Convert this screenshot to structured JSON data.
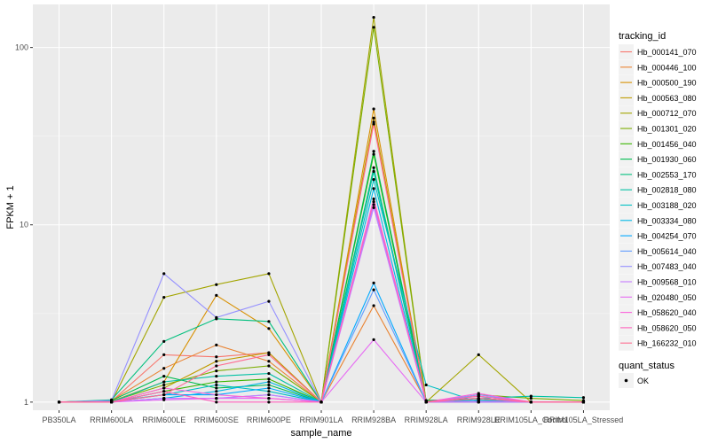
{
  "chart_data": {
    "type": "line",
    "xlabel": "sample_name",
    "ylabel": "FPKM + 1",
    "y_scale": "log10",
    "ylim": [
      0.9,
      175
    ],
    "y_ticks": [
      1,
      10,
      100
    ],
    "y_tick_labels": [
      "1",
      "10",
      "100"
    ],
    "grid": true,
    "legend_position": "right",
    "categories": [
      "PB350LA",
      "RRIM600LA",
      "RRIM600LE",
      "RRIM600SE",
      "RRIM600PE",
      "RRIM901LA",
      "RRIM928BA",
      "RRIM928LA",
      "RRIM928LE",
      "RRIM105LA_Control",
      "RRIM105LA_Stressed"
    ],
    "legend": {
      "title": "tracking_id",
      "quant_title": "quant_status",
      "quant_entries": [
        "OK"
      ]
    },
    "series": [
      {
        "name": "Hb_000141_070",
        "color": "#F8766D",
        "values": [
          1,
          1.01,
          1.85,
          1.8,
          1.9,
          1,
          38,
          1.02,
          1.05,
          1.0,
          1.0
        ]
      },
      {
        "name": "Hb_000446_100",
        "color": "#EA8331",
        "values": [
          1,
          1.02,
          1.55,
          2.1,
          1.7,
          1,
          3.5,
          1.01,
          1.08,
          1.0,
          1.0
        ]
      },
      {
        "name": "Hb_000500_190",
        "color": "#D89000",
        "values": [
          1,
          1.01,
          1.3,
          4.0,
          2.6,
          1,
          45,
          1.0,
          1.03,
          1.0,
          1.0
        ]
      },
      {
        "name": "Hb_000563_080",
        "color": "#C09B00",
        "values": [
          1,
          1.0,
          1.2,
          1.7,
          1.9,
          1,
          40,
          1.0,
          1.0,
          1.0,
          1.0
        ]
      },
      {
        "name": "Hb_000712_070",
        "color": "#A3A500",
        "values": [
          1,
          1.0,
          3.9,
          4.6,
          5.3,
          1,
          148,
          1.0,
          1.85,
          1.0,
          1.0
        ]
      },
      {
        "name": "Hb_001301_020",
        "color": "#7CAE00",
        "values": [
          1,
          1.01,
          1.25,
          1.5,
          1.6,
          1,
          130,
          1.0,
          1.1,
          1.05,
          1.02
        ]
      },
      {
        "name": "Hb_001456_040",
        "color": "#39B600",
        "values": [
          1,
          1.0,
          1.15,
          1.3,
          1.35,
          1,
          25,
          1.0,
          1.05,
          1.0,
          1.0
        ]
      },
      {
        "name": "Hb_001930_060",
        "color": "#00BB4E",
        "values": [
          1,
          1.02,
          1.4,
          1.2,
          1.25,
          1,
          26,
          1.02,
          1.05,
          1.0,
          1.0
        ]
      },
      {
        "name": "Hb_002553_170",
        "color": "#00BF7D",
        "values": [
          1,
          1.03,
          2.2,
          2.95,
          2.85,
          1,
          21,
          1.0,
          1.03,
          1.0,
          1.0
        ]
      },
      {
        "name": "Hb_002818_080",
        "color": "#00C1A3",
        "values": [
          1,
          1.0,
          1.3,
          1.4,
          1.45,
          1,
          20,
          1.0,
          1.05,
          1.08,
          1.06
        ]
      },
      {
        "name": "Hb_003188_020",
        "color": "#00BFC4",
        "values": [
          1,
          1.01,
          1.1,
          1.25,
          1.15,
          1,
          18,
          1.25,
          1.0,
          1.0,
          1.0
        ]
      },
      {
        "name": "Hb_003334_080",
        "color": "#00B8E7",
        "values": [
          1,
          1.0,
          1.05,
          1.15,
          1.3,
          1,
          16,
          1.0,
          1.0,
          1.0,
          1.0
        ]
      },
      {
        "name": "Hb_004254_070",
        "color": "#00A9FF",
        "values": [
          1,
          1.0,
          1.1,
          1.1,
          1.2,
          1,
          4.7,
          1.0,
          1.0,
          1.0,
          1.0
        ]
      },
      {
        "name": "Hb_005614_040",
        "color": "#619CFF",
        "values": [
          1,
          1.0,
          1.05,
          1.05,
          1.1,
          1,
          4.3,
          1.0,
          1.02,
          1.0,
          1.0
        ]
      },
      {
        "name": "Hb_007483_040",
        "color": "#9590FF",
        "values": [
          1,
          1.02,
          5.3,
          3.0,
          3.7,
          1,
          13,
          1.0,
          1.1,
          1.0,
          1.0
        ]
      },
      {
        "name": "Hb_009568_010",
        "color": "#C77CFF",
        "values": [
          1,
          1.0,
          1.05,
          1.05,
          1.1,
          1,
          12.5,
          1.0,
          1.05,
          1.0,
          1.0
        ]
      },
      {
        "name": "Hb_020480_050",
        "color": "#E76BF3",
        "values": [
          1,
          1.0,
          1.03,
          1.05,
          1.05,
          1,
          2.25,
          1.0,
          1.0,
          1.0,
          1.0
        ]
      },
      {
        "name": "Hb_058620_040",
        "color": "#FA62DB",
        "values": [
          1,
          1.0,
          1.2,
          1.1,
          1.05,
          1,
          14,
          1.0,
          1.12,
          1.0,
          1.0
        ]
      },
      {
        "name": "Hb_058620_050",
        "color": "#FF62BC",
        "values": [
          1,
          1.0,
          1.15,
          1.0,
          1.0,
          1,
          13.5,
          1.0,
          1.08,
          1.0,
          1.0
        ]
      },
      {
        "name": "Hb_166232_010",
        "color": "#FF6C91",
        "values": [
          1,
          1.0,
          1.1,
          1.6,
          1.85,
          1,
          37,
          1.0,
          1.05,
          1.0,
          1.0
        ]
      }
    ]
  }
}
